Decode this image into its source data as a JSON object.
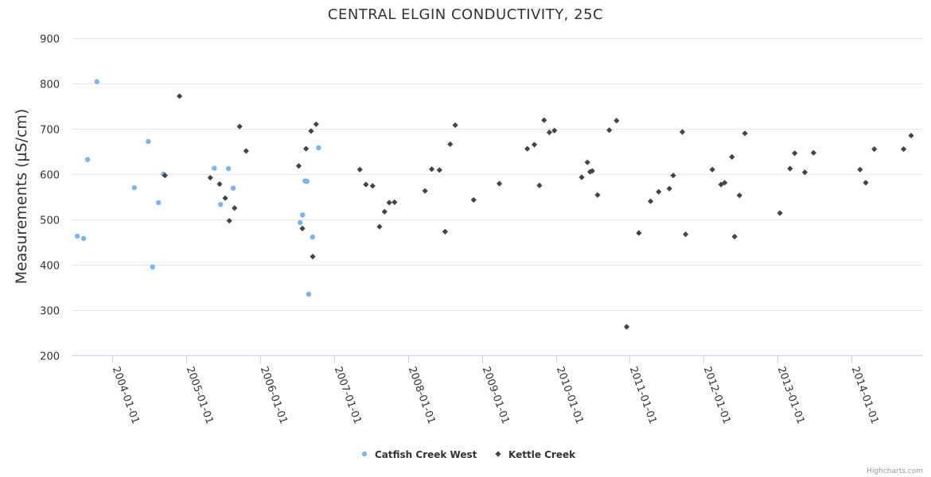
{
  "chart_data": {
    "type": "scatter",
    "title": "CENTRAL ELGIN CONDUCTIVITY, 25C",
    "xlabel": "",
    "ylabel": "Measurements (µS/cm)",
    "ylim": [
      200,
      900
    ],
    "yticks": [
      200,
      300,
      400,
      500,
      600,
      700,
      800,
      900
    ],
    "xlim": [
      "2003-06-15",
      "2014-12-20"
    ],
    "xticks": [
      "2004-01-01",
      "2005-01-01",
      "2006-01-01",
      "2007-01-01",
      "2008-01-01",
      "2009-01-01",
      "2010-01-01",
      "2011-01-01",
      "2012-01-01",
      "2013-01-01",
      "2014-01-01"
    ],
    "grid": true,
    "legend": "bottom-center",
    "series": [
      {
        "name": "Catfish Creek West",
        "color": "#7cb5ec",
        "marker": "circle",
        "points": [
          [
            "2003-07-13",
            463
          ],
          [
            "2003-08-13",
            458
          ],
          [
            "2003-09-02",
            632
          ],
          [
            "2003-10-18",
            804
          ],
          [
            "2004-04-20",
            570
          ],
          [
            "2004-06-28",
            672
          ],
          [
            "2004-07-19",
            395
          ],
          [
            "2004-08-17",
            537
          ],
          [
            "2004-09-11",
            600
          ],
          [
            "2005-05-20",
            613
          ],
          [
            "2005-06-20",
            533
          ],
          [
            "2005-07-29",
            612
          ],
          [
            "2005-08-21",
            569
          ],
          [
            "2006-07-18",
            493
          ],
          [
            "2006-07-30",
            510
          ],
          [
            "2006-08-11",
            585
          ],
          [
            "2006-08-21",
            584
          ],
          [
            "2006-08-29",
            335
          ],
          [
            "2006-09-17",
            461
          ],
          [
            "2006-10-17",
            658
          ]
        ]
      },
      {
        "name": "Kettle Creek",
        "color": "#434348",
        "marker": "diamond",
        "points": [
          [
            "2004-09-18",
            597
          ],
          [
            "2004-11-29",
            772
          ],
          [
            "2005-04-30",
            592
          ],
          [
            "2005-06-15",
            578
          ],
          [
            "2005-07-13",
            547
          ],
          [
            "2005-08-02",
            497
          ],
          [
            "2005-08-28",
            525
          ],
          [
            "2005-09-22",
            705
          ],
          [
            "2005-10-24",
            651
          ],
          [
            "2006-07-11",
            618
          ],
          [
            "2006-07-29",
            480
          ],
          [
            "2006-08-16",
            656
          ],
          [
            "2006-09-10",
            695
          ],
          [
            "2006-09-18",
            418
          ],
          [
            "2006-10-05",
            710
          ],
          [
            "2007-05-09",
            610
          ],
          [
            "2007-06-08",
            577
          ],
          [
            "2007-07-11",
            574
          ],
          [
            "2007-08-14",
            484
          ],
          [
            "2007-09-08",
            517
          ],
          [
            "2007-10-01",
            537
          ],
          [
            "2007-10-27",
            538
          ],
          [
            "2008-03-26",
            563
          ],
          [
            "2008-04-28",
            611
          ],
          [
            "2008-06-05",
            609
          ],
          [
            "2008-07-03",
            473
          ],
          [
            "2008-07-28",
            666
          ],
          [
            "2008-08-22",
            708
          ],
          [
            "2008-11-21",
            543
          ],
          [
            "2009-03-28",
            579
          ],
          [
            "2009-08-13",
            656
          ],
          [
            "2009-09-17",
            665
          ],
          [
            "2009-10-12",
            575
          ],
          [
            "2009-11-04",
            719
          ],
          [
            "2009-11-30",
            692
          ],
          [
            "2009-12-25",
            696
          ],
          [
            "2010-06-19",
            605
          ],
          [
            "2010-05-09",
            593
          ],
          [
            "2010-06-06",
            626
          ],
          [
            "2010-06-30",
            607
          ],
          [
            "2010-07-26",
            554
          ],
          [
            "2010-09-22",
            697
          ],
          [
            "2010-10-28",
            718
          ],
          [
            "2010-12-17",
            263
          ],
          [
            "2011-02-15",
            470
          ],
          [
            "2011-04-14",
            540
          ],
          [
            "2011-05-24",
            561
          ],
          [
            "2011-07-16",
            568
          ],
          [
            "2011-08-04",
            597
          ],
          [
            "2011-09-18",
            693
          ],
          [
            "2011-10-04",
            467
          ],
          [
            "2012-02-13",
            610
          ],
          [
            "2012-03-27",
            577
          ],
          [
            "2012-04-14",
            581
          ],
          [
            "2012-05-20",
            638
          ],
          [
            "2012-06-02",
            462
          ],
          [
            "2012-06-26",
            553
          ],
          [
            "2012-07-23",
            690
          ],
          [
            "2013-01-12",
            514
          ],
          [
            "2013-03-03",
            612
          ],
          [
            "2013-03-26",
            646
          ],
          [
            "2013-05-15",
            604
          ],
          [
            "2013-06-27",
            647
          ],
          [
            "2014-02-12",
            610
          ],
          [
            "2014-03-12",
            581
          ],
          [
            "2014-04-23",
            655
          ],
          [
            "2014-09-15",
            655
          ],
          [
            "2014-10-22",
            685
          ]
        ]
      }
    ]
  },
  "credit": "Highcharts.com"
}
